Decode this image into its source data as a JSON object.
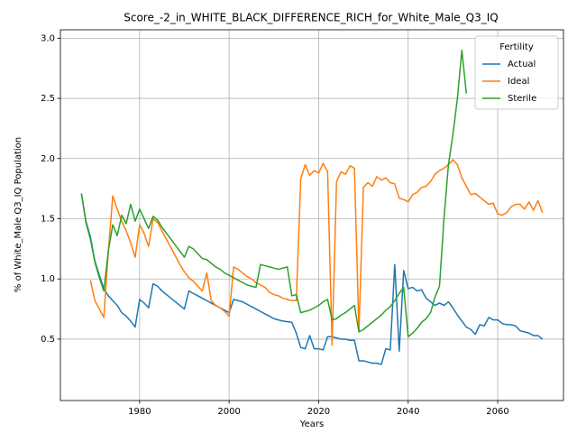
{
  "chart_data": {
    "type": "line",
    "title": "Score_-2_in_WHITE_BLACK_DIFFERENCE_RICH_for_White_Male_Q3_IQ",
    "x_label": "Years",
    "y_label": "% of White_Male Q3_IQ Population",
    "legend_title": "Fertility",
    "legend": "upper right",
    "grid": true,
    "x": [
      1967,
      1968,
      1969,
      1970,
      1971,
      1972,
      1973,
      1974,
      1975,
      1976,
      1977,
      1978,
      1979,
      1980,
      1981,
      1982,
      1983,
      1984,
      1985,
      1986,
      1987,
      1988,
      1989,
      1990,
      1991,
      1992,
      1993,
      1994,
      1995,
      1996,
      1997,
      1998,
      1999,
      2000,
      2001,
      2002,
      2003,
      2004,
      2005,
      2006,
      2007,
      2008,
      2009,
      2010,
      2011,
      2012,
      2013,
      2014,
      2015,
      2016,
      2017,
      2018,
      2019,
      2020,
      2021,
      2022,
      2023,
      2024,
      2025,
      2026,
      2027,
      2028,
      2029,
      2030,
      2031,
      2032,
      2033,
      2034,
      2035,
      2036,
      2037,
      2038,
      2039,
      2040,
      2041,
      2042,
      2043,
      2044,
      2045,
      2046,
      2047,
      2048,
      2049,
      2050,
      2051,
      2052,
      2053,
      2054,
      2055,
      2056,
      2057,
      2058,
      2059,
      2060,
      2061,
      2062,
      2063,
      2064,
      2065,
      2066,
      2067,
      2068,
      2069,
      2070
    ],
    "series": [
      {
        "name": "Actual",
        "color": "#1f77b4",
        "values": [
          1.71,
          1.48,
          1.35,
          1.15,
          1.03,
          0.92,
          0.86,
          0.82,
          0.78,
          0.72,
          0.69,
          0.65,
          0.6,
          0.83,
          0.8,
          0.76,
          0.96,
          0.94,
          0.9,
          0.87,
          0.84,
          0.81,
          0.78,
          0.75,
          0.9,
          0.88,
          0.86,
          0.84,
          0.82,
          0.8,
          0.78,
          0.76,
          0.74,
          0.72,
          0.83,
          0.82,
          0.81,
          0.79,
          0.77,
          0.75,
          0.73,
          0.71,
          0.69,
          0.67,
          0.66,
          0.65,
          0.645,
          0.64,
          0.55,
          0.43,
          0.42,
          0.53,
          0.42,
          0.42,
          0.41,
          0.52,
          0.52,
          0.51,
          0.5,
          0.5,
          0.49,
          0.49,
          0.32,
          0.32,
          0.31,
          0.3,
          0.3,
          0.29,
          0.42,
          0.41,
          1.12,
          0.4,
          1.07,
          0.92,
          0.93,
          0.9,
          0.91,
          0.84,
          0.81,
          0.78,
          0.8,
          0.78,
          0.81,
          0.76,
          0.7,
          0.65,
          0.6,
          0.58,
          0.54,
          0.62,
          0.61,
          0.68,
          0.66,
          0.66,
          0.63,
          0.62,
          0.62,
          0.61,
          0.57,
          0.56,
          0.55,
          0.53,
          0.53,
          0.5
        ]
      },
      {
        "name": "Ideal",
        "color": "#ff7f0e",
        "values": [
          null,
          null,
          0.99,
          0.82,
          0.75,
          0.68,
          1.22,
          1.69,
          1.58,
          1.48,
          1.4,
          1.3,
          1.18,
          1.45,
          1.38,
          1.27,
          1.5,
          1.47,
          1.4,
          1.33,
          1.26,
          1.19,
          1.12,
          1.06,
          1.01,
          0.98,
          0.94,
          0.9,
          1.05,
          0.82,
          0.78,
          0.76,
          0.73,
          0.69,
          1.1,
          1.08,
          1.05,
          1.02,
          1.0,
          0.97,
          0.95,
          0.93,
          0.89,
          0.87,
          0.86,
          0.84,
          0.83,
          0.82,
          0.82,
          1.83,
          1.95,
          1.86,
          1.9,
          1.88,
          1.96,
          1.89,
          0.45,
          1.81,
          1.89,
          1.87,
          1.94,
          1.92,
          0.56,
          1.76,
          1.8,
          1.77,
          1.85,
          1.82,
          1.84,
          1.8,
          1.79,
          1.67,
          1.66,
          1.64,
          1.7,
          1.72,
          1.76,
          1.77,
          1.81,
          1.87,
          1.9,
          1.92,
          1.95,
          1.99,
          1.95,
          1.84,
          1.77,
          1.7,
          1.71,
          1.68,
          1.65,
          1.62,
          1.63,
          1.54,
          1.53,
          1.55,
          1.6,
          1.62,
          1.62,
          1.58,
          1.64,
          1.57,
          1.65,
          1.55
        ]
      },
      {
        "name": "Sterile",
        "color": "#2ca02c",
        "values": [
          1.71,
          1.47,
          1.33,
          1.14,
          1.01,
          0.9,
          1.23,
          1.45,
          1.36,
          1.53,
          1.46,
          1.62,
          1.48,
          1.58,
          1.5,
          1.42,
          1.52,
          1.49,
          1.43,
          1.38,
          1.33,
          1.28,
          1.23,
          1.18,
          1.27,
          1.25,
          1.21,
          1.17,
          1.16,
          1.13,
          1.1,
          1.08,
          1.05,
          1.03,
          1.01,
          0.99,
          0.97,
          0.95,
          0.94,
          0.93,
          1.12,
          1.11,
          1.1,
          1.09,
          1.08,
          1.09,
          1.1,
          0.86,
          0.87,
          0.72,
          0.73,
          0.74,
          0.76,
          0.78,
          0.81,
          0.83,
          0.66,
          0.67,
          0.7,
          0.72,
          0.75,
          0.78,
          0.56,
          0.58,
          0.61,
          0.64,
          0.67,
          0.7,
          0.74,
          0.77,
          0.82,
          0.88,
          0.93,
          0.52,
          0.55,
          0.59,
          0.64,
          0.67,
          0.72,
          0.85,
          0.94,
          1.5,
          1.95,
          2.2,
          2.5,
          2.9,
          2.54,
          null,
          null,
          null,
          null,
          null,
          null,
          null,
          null,
          null,
          null,
          null,
          null,
          null,
          null,
          null,
          null,
          null
        ]
      }
    ],
    "xlim": [
      1962.3,
      2074.7
    ],
    "xticks": [
      1980,
      2000,
      2020,
      2040,
      2060
    ],
    "ylim": [
      -0.01,
      3.07
    ],
    "yticks": [
      0.5,
      {
        "value": 1,
        "label": "1.0"
      },
      1.5,
      {
        "value": 2,
        "label": "2.0"
      },
      2.5,
      {
        "value": 3,
        "label": "3.0"
      }
    ]
  }
}
